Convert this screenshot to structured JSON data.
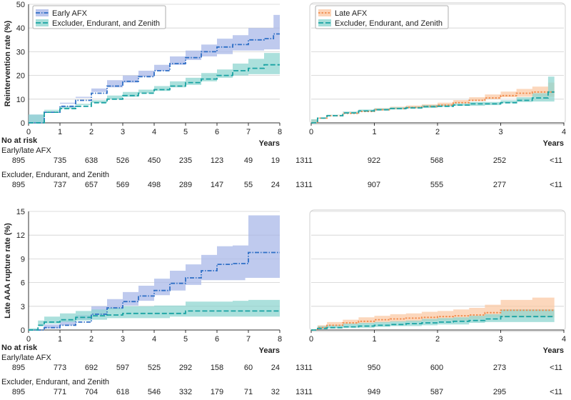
{
  "chart_data": [
    {
      "type": "line",
      "id": "reint-early",
      "ylabel": "Reintervention rate (%)",
      "xlabel": "Years",
      "xlim": [
        0,
        8
      ],
      "ylim": [
        0,
        50
      ],
      "xticks": [
        "0",
        "1",
        "2",
        "3",
        "4",
        "5",
        "6",
        "7",
        "8"
      ],
      "yticks": [
        "0",
        "10",
        "20",
        "30",
        "40",
        "50"
      ],
      "legend": [
        "Early AFX",
        "Excluder, Endurant, and Zenith"
      ],
      "series": [
        {
          "name": "Early AFX",
          "color": "#2f6fc6",
          "band_color": "#aab8e8",
          "x": [
            0,
            0.5,
            1,
            1.5,
            2,
            2.5,
            3,
            3.5,
            4,
            4.5,
            5,
            5.5,
            6,
            6.5,
            7,
            7.5,
            7.8,
            8
          ],
          "y": [
            0,
            4.5,
            7,
            9.5,
            12.5,
            15.5,
            17.5,
            19.5,
            22,
            25,
            27.5,
            30,
            32,
            33,
            35,
            35.5,
            37.5,
            37.5
          ],
          "lower": [
            0,
            3.5,
            5.5,
            8,
            10.5,
            13,
            15,
            17,
            19.5,
            22,
            24.5,
            26.5,
            28,
            29,
            30.5,
            30.5,
            31,
            31
          ],
          "upper": [
            0,
            5.5,
            8.5,
            11,
            14.5,
            18,
            20,
            22,
            24.5,
            28,
            30.5,
            33,
            35.5,
            37,
            40,
            40,
            45.5,
            45.5
          ]
        },
        {
          "name": "Excluder, Endurant, and Zenith",
          "color": "#1aa3a3",
          "band_color": "#8fd6d0",
          "x": [
            0,
            0.5,
            1,
            1.5,
            2,
            2.5,
            3,
            3.5,
            4,
            4.5,
            5,
            5.5,
            6,
            6.5,
            7,
            7.5,
            8
          ],
          "y": [
            0,
            4.5,
            6,
            7,
            8.5,
            10,
            11.5,
            12.5,
            14,
            15.5,
            17,
            18.5,
            20,
            22,
            23,
            24.5,
            24.5
          ],
          "lower": [
            0,
            3.5,
            5,
            6,
            7.5,
            8.5,
            10,
            11,
            12.5,
            13.5,
            15,
            16,
            17.5,
            19,
            20,
            20.5,
            20.5
          ],
          "upper": [
            0,
            5.5,
            7,
            8,
            9.5,
            11.5,
            13,
            14,
            15.5,
            17.5,
            19,
            21,
            22.5,
            25,
            27,
            29.5,
            29.5
          ]
        }
      ]
    },
    {
      "type": "line",
      "id": "reint-late",
      "xlabel": "Years",
      "xlim": [
        0,
        4
      ],
      "ylim": [
        0,
        50
      ],
      "xticks": [
        "0",
        "1",
        "2",
        "3",
        "4"
      ],
      "legend": [
        "Late AFX",
        "Excluder, Endurant, and Zenith"
      ],
      "series": [
        {
          "name": "Late AFX",
          "color": "#f08a4b",
          "band_color": "#fbc9a6",
          "x": [
            0,
            0.1,
            0.25,
            0.5,
            0.75,
            1,
            1.25,
            1.5,
            1.75,
            2,
            2.25,
            2.5,
            2.75,
            3,
            3.25,
            3.5,
            3.75,
            3.85
          ],
          "y": [
            0,
            2,
            3,
            4,
            4.8,
            5.5,
            6,
            6.5,
            7,
            7.5,
            8.5,
            9.5,
            10.5,
            11.5,
            12.5,
            13,
            13,
            13
          ],
          "lower": [
            0,
            1.5,
            2.5,
            3.5,
            4.2,
            4.8,
            5.3,
            5.8,
            6.2,
            6.6,
            7.5,
            8.3,
            9.2,
            10,
            10.8,
            11,
            11,
            11
          ],
          "upper": [
            0,
            2.5,
            3.5,
            4.5,
            5.4,
            6.2,
            6.8,
            7.3,
            7.8,
            8.5,
            9.6,
            10.8,
            12,
            13.2,
            14.3,
            15.3,
            17,
            17
          ]
        },
        {
          "name": "Excluder, Endurant, and Zenith",
          "color": "#1aa3a3",
          "band_color": "#8fd6d0",
          "x": [
            0,
            0.1,
            0.25,
            0.5,
            0.75,
            1,
            1.25,
            1.5,
            1.75,
            2,
            2.25,
            2.5,
            2.75,
            3,
            3.25,
            3.5,
            3.75,
            3.85
          ],
          "y": [
            0,
            2,
            3,
            4.2,
            5,
            5.5,
            6,
            6.3,
            6.8,
            7,
            7.5,
            8,
            8,
            8.5,
            9.5,
            10.5,
            13,
            13
          ],
          "lower": [
            0,
            1.5,
            2.5,
            3.6,
            4.4,
            4.9,
            5.4,
            5.7,
            6.1,
            6.3,
            6.8,
            7.2,
            7.2,
            7.5,
            8.3,
            8.8,
            9,
            9
          ],
          "upper": [
            0,
            2.5,
            3.5,
            4.8,
            5.6,
            6.1,
            6.6,
            6.9,
            7.5,
            7.7,
            8.2,
            8.8,
            8.8,
            9.5,
            10.8,
            12.5,
            19.5,
            19.5
          ]
        }
      ]
    },
    {
      "type": "line",
      "id": "rupture-early",
      "ylabel": "Late AAA rupture rate (%)",
      "xlabel": "Years",
      "xlim": [
        0,
        8
      ],
      "ylim": [
        0,
        15
      ],
      "xticks": [
        "0",
        "1",
        "2",
        "3",
        "4",
        "5",
        "6",
        "7",
        "8"
      ],
      "yticks": [
        "0",
        "3",
        "6",
        "9",
        "12",
        "15"
      ],
      "series": [
        {
          "name": "Early AFX",
          "color": "#2f6fc6",
          "band_color": "#aab8e8",
          "x": [
            0,
            0.5,
            1,
            1.5,
            2,
            2.5,
            3,
            3.5,
            4,
            4.5,
            5,
            5.5,
            6,
            6.5,
            6.9,
            7,
            8
          ],
          "y": [
            0,
            0.3,
            0.6,
            1,
            2,
            2.8,
            3.6,
            4.3,
            5,
            5.9,
            6.6,
            7.5,
            8.3,
            8.4,
            8.4,
            9.8,
            9.8
          ],
          "lower": [
            0,
            0,
            0.2,
            0.6,
            1.3,
            1.9,
            2.6,
            3.1,
            3.7,
            4.4,
            5,
            5.7,
            6.3,
            6.3,
            6.3,
            6.6,
            6.6
          ],
          "upper": [
            0,
            0.7,
            1.2,
            1.9,
            3,
            3.9,
            4.8,
            5.6,
            6.5,
            7.5,
            8.3,
            9.5,
            10.6,
            10.7,
            10.7,
            14.5,
            14.5
          ]
        },
        {
          "name": "Excluder, Endurant, and Zenith",
          "color": "#1aa3a3",
          "band_color": "#8fd6d0",
          "x": [
            0,
            0.3,
            0.5,
            1,
            1.5,
            2,
            2.5,
            3,
            3.5,
            4,
            4.5,
            5,
            5.5,
            6,
            6.5,
            7,
            8
          ],
          "y": [
            0,
            0.6,
            1,
            1.3,
            1.6,
            1.8,
            1.9,
            2.1,
            2.1,
            2.1,
            2.1,
            2.4,
            2.4,
            2.4,
            2.4,
            2.4,
            2.4
          ],
          "lower": [
            0,
            0.2,
            0.5,
            0.8,
            1,
            1.2,
            1.3,
            1.5,
            1.5,
            1.5,
            1.5,
            1.7,
            1.7,
            1.7,
            1.7,
            1.7,
            1.7
          ],
          "upper": [
            0,
            1.2,
            1.7,
            2.1,
            2.4,
            2.6,
            2.8,
            3,
            3,
            3.1,
            3.1,
            3.6,
            3.6,
            3.6,
            3.7,
            3.8,
            3.8
          ]
        }
      ]
    },
    {
      "type": "line",
      "id": "rupture-late",
      "xlabel": "Years",
      "xlim": [
        0,
        4
      ],
      "ylim": [
        0,
        15
      ],
      "xticks": [
        "0",
        "1",
        "2",
        "3",
        "4"
      ],
      "series": [
        {
          "name": "Late AFX",
          "color": "#f08a4b",
          "band_color": "#fbc9a6",
          "x": [
            0,
            0.1,
            0.25,
            0.5,
            0.75,
            1,
            1.25,
            1.5,
            1.75,
            2,
            2.25,
            2.5,
            2.75,
            3,
            3.5,
            3.85
          ],
          "y": [
            0,
            0.3,
            0.6,
            0.9,
            1.1,
            1.3,
            1.4,
            1.5,
            1.6,
            1.7,
            1.8,
            1.9,
            2.2,
            2.5,
            2.5,
            2.5
          ],
          "lower": [
            0,
            0,
            0.2,
            0.5,
            0.7,
            0.8,
            0.9,
            1,
            1,
            1.1,
            1.2,
            1.2,
            1.4,
            1.6,
            1.6,
            1.6
          ],
          "upper": [
            0,
            0.6,
            1,
            1.3,
            1.6,
            1.8,
            2,
            2.1,
            2.3,
            2.4,
            2.6,
            2.8,
            3.2,
            3.8,
            4.1,
            4.1
          ]
        },
        {
          "name": "Excluder, Endurant, and Zenith",
          "color": "#1aa3a3",
          "band_color": "#8fd6d0",
          "x": [
            0,
            0.1,
            0.25,
            0.5,
            0.75,
            1,
            1.25,
            1.5,
            1.75,
            2,
            2.25,
            2.5,
            2.75,
            3,
            3.5,
            3.85
          ],
          "y": [
            0,
            0.2,
            0.3,
            0.4,
            0.5,
            0.6,
            0.7,
            0.8,
            0.9,
            1,
            1.1,
            1.2,
            1.4,
            1.7,
            1.7,
            1.7
          ],
          "lower": [
            0,
            0,
            0.1,
            0.2,
            0.3,
            0.3,
            0.4,
            0.5,
            0.5,
            0.6,
            0.7,
            0.7,
            0.9,
            1,
            1,
            1
          ],
          "upper": [
            0,
            0.5,
            0.6,
            0.8,
            0.9,
            1,
            1.1,
            1.2,
            1.4,
            1.5,
            1.6,
            1.8,
            2,
            2.6,
            2.6,
            2.6
          ]
        }
      ]
    }
  ],
  "risk_tables": [
    {
      "header": "No at risk",
      "groups": [
        {
          "label": "Early/late AFX",
          "left": [
            "895",
            "735",
            "638",
            "526",
            "450",
            "235",
            "123",
            "49",
            "19"
          ],
          "right": [
            "1311",
            "922",
            "568",
            "252",
            "<11"
          ]
        },
        {
          "label": "Excluder, Endurant, and Zenith",
          "left": [
            "895",
            "737",
            "657",
            "569",
            "498",
            "289",
            "147",
            "55",
            "24"
          ],
          "right": [
            "1311",
            "907",
            "555",
            "277",
            "<11"
          ]
        }
      ]
    },
    {
      "header": "No at risk",
      "groups": [
        {
          "label": "Early/late AFX",
          "left": [
            "895",
            "773",
            "692",
            "597",
            "525",
            "292",
            "158",
            "60",
            "24"
          ],
          "right": [
            "1311",
            "950",
            "600",
            "273",
            "<11"
          ]
        },
        {
          "label": "Excluder, Endurant, and Zenith",
          "left": [
            "895",
            "771",
            "704",
            "618",
            "546",
            "332",
            "179",
            "71",
            "32"
          ],
          "right": [
            "1311",
            "949",
            "587",
            "295",
            "<11"
          ]
        }
      ]
    }
  ]
}
